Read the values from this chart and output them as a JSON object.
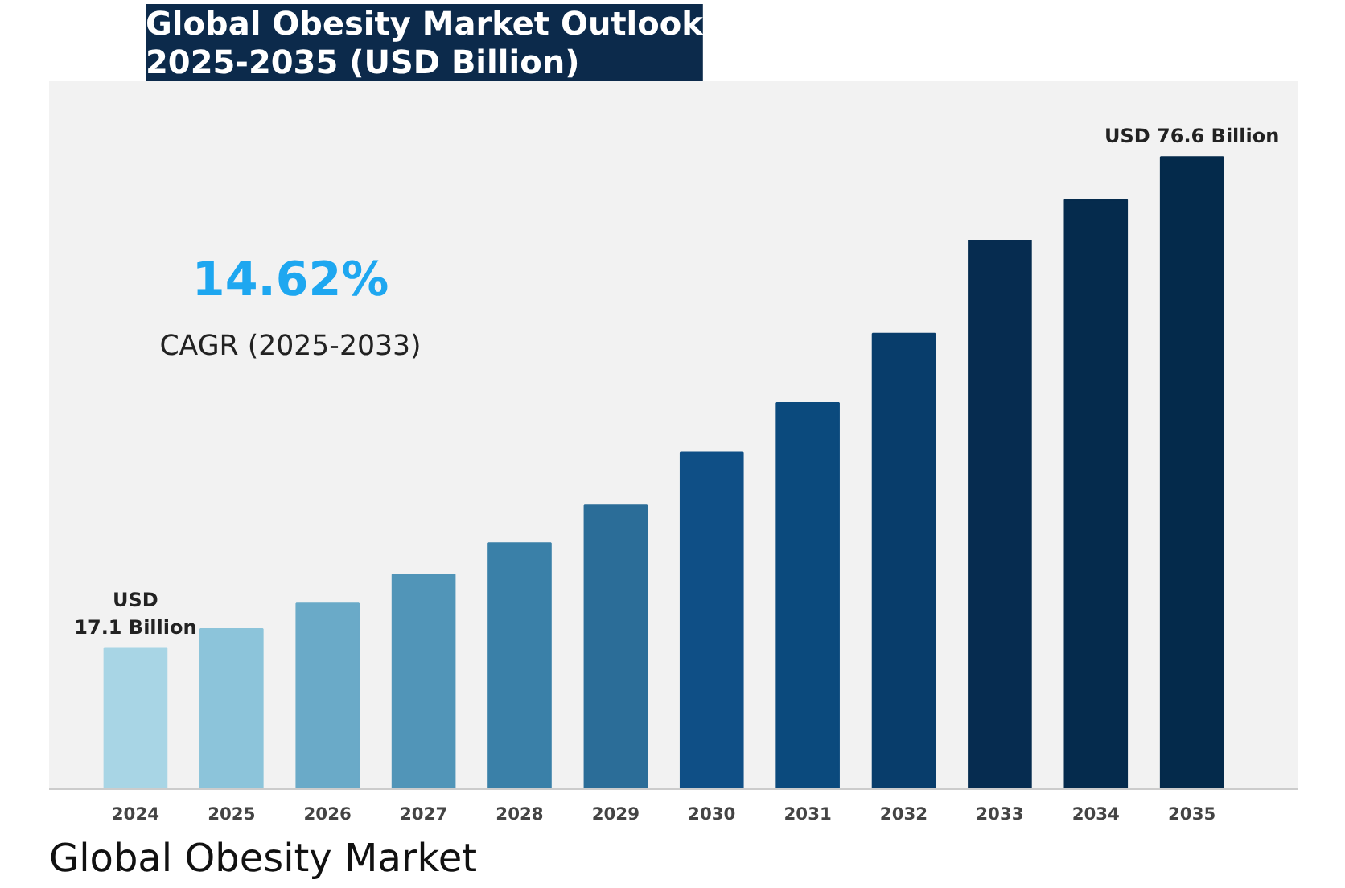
{
  "chart_data": {
    "type": "bar",
    "title": "Global Obesity Market Outlook\n2025-2035 (USD Billion)",
    "categories": [
      "2024",
      "2025",
      "2026",
      "2027",
      "2028",
      "2029",
      "2030",
      "2031",
      "2032",
      "2033",
      "2034",
      "2035"
    ],
    "values": [
      17.1,
      19.4,
      22.5,
      26.0,
      29.8,
      34.4,
      40.8,
      46.8,
      55.2,
      66.5,
      71.4,
      76.6
    ],
    "colors": [
      "#a8d5e5",
      "#8cc4da",
      "#6aaac8",
      "#5195b8",
      "#3a80a8",
      "#2b6d98",
      "#0f4f86",
      "#0b4a7d",
      "#083d6b",
      "#062c50",
      "#052b4d",
      "#042a4b"
    ],
    "value_labels": [
      "USD\n17.1 Billion",
      null,
      null,
      null,
      null,
      null,
      null,
      null,
      null,
      null,
      null,
      "USD 76.6 Billion"
    ],
    "annotations": [
      "14.62%",
      "CAGR (2025-2033)",
      "Global Obesity Market"
    ],
    "grid": false
  }
}
